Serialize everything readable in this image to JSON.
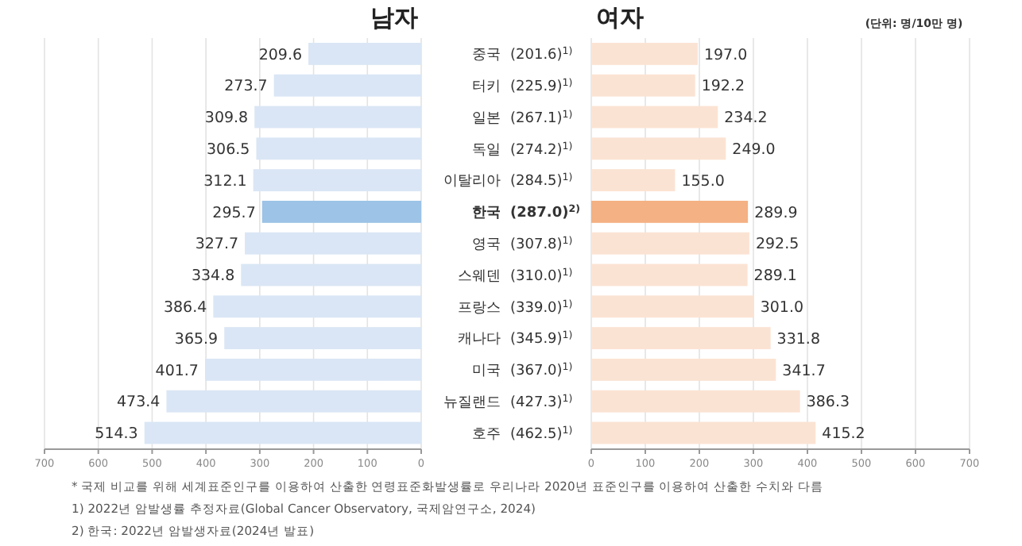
{
  "chart_data": [
    {
      "type": "bar",
      "orientation": "horizontal",
      "title": "남자",
      "categories": [
        "중국",
        "터키",
        "일본",
        "독일",
        "이탈리아",
        "한국",
        "영국",
        "스웨덴",
        "프랑스",
        "캐나다",
        "미국",
        "뉴질랜드",
        "호주"
      ],
      "values": [
        209.6,
        273.7,
        309.8,
        306.5,
        312.1,
        295.7,
        327.7,
        334.8,
        386.4,
        365.9,
        401.7,
        473.4,
        514.3
      ],
      "colors": [
        "#dae6f5",
        "#dae6f5",
        "#dae6f5",
        "#dae6f5",
        "#dae6f5",
        "#9dc3e6",
        "#dae6f5",
        "#dae6f5",
        "#dae6f5",
        "#dae6f5",
        "#dae6f5",
        "#dae6f5",
        "#dae6f5"
      ],
      "xlim": [
        700,
        0
      ],
      "xticks": [
        700,
        600,
        500,
        400,
        300,
        200,
        100,
        0
      ],
      "grid": "x",
      "data_labels": true,
      "annotations": [
        "* 국제 비교를 위해 세계표준인구를 이용하여 산출한 연령표준화발생률로 우리나라 2020년 표준인구를 이용하여 산출한 수치와 다름",
        "1) 2022년 암발생률 추정자료(Global Cancer Observatory, 국제암연구소, 2024)",
        "2) 한국: 2022년 암발생자료(2024년 발표)"
      ]
    },
    {
      "type": "bar",
      "orientation": "horizontal",
      "title": "여자",
      "categories": [
        "(201.6)$^{1)}$",
        "(225.9)$^{1)}$",
        "(267.1)$^{1)}$",
        "(274.2)$^{1)}$",
        "(284.5)$^{1)}$",
        "(287.0)$^{2)}$",
        "(307.8)$^{1)}$",
        "(310.0)$^{1)}$",
        "(339.0)$^{1)}$",
        "(345.9)$^{1)}$",
        "(367.0)$^{1)}$",
        "(427.3)$^{1)}$",
        "(462.5)$^{1)}$"
      ],
      "values": [
        197.0,
        192.2,
        234.2,
        249.0,
        155.0,
        289.9,
        292.5,
        289.1,
        301.0,
        331.8,
        341.7,
        386.3,
        415.2
      ],
      "value_labels": [
        "197.0",
        "192.2",
        "234.2",
        "249.0",
        "155.0",
        "289.9",
        "292.5",
        "289.1",
        "301.0",
        "331.8",
        "341.7",
        "386.3",
        "415.2"
      ],
      "colors": [
        "#fbe3d3",
        "#fbe3d3",
        "#fbe3d3",
        "#fbe3d3",
        "#fbe3d3",
        "#f4b183",
        "#fbe3d3",
        "#fbe3d3",
        "#fbe3d3",
        "#fbe3d3",
        "#fbe3d3",
        "#fbe3d3",
        "#fbe3d3"
      ],
      "xlim": [
        0,
        700
      ],
      "xticks": [
        0,
        100,
        200,
        300,
        400,
        500,
        600,
        700
      ],
      "grid": "x",
      "annotations": [
        "(단위: 명/10만 명)"
      ]
    }
  ]
}
